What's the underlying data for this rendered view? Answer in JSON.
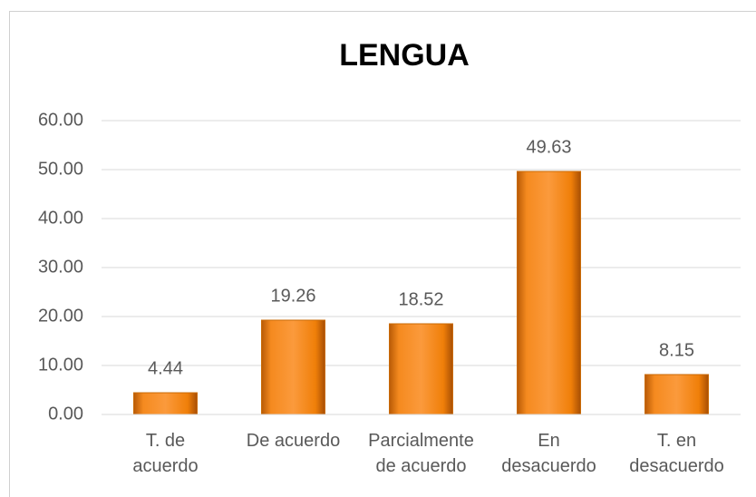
{
  "chart_data": {
    "type": "bar",
    "title": "LENGUA",
    "categories": [
      "T. de\nacuerdo",
      "De acuerdo",
      "Parcialmente\nde acuerdo",
      "En\ndesacuerdo",
      "T. en\ndesacuerdo"
    ],
    "values": [
      4.44,
      19.26,
      18.52,
      49.63,
      8.15
    ],
    "color": "#f07f09",
    "ylim": [
      0,
      60
    ],
    "yticks": [
      {
        "value": 0,
        "label": "0.00"
      },
      {
        "value": 10,
        "label": "10.00"
      },
      {
        "value": 20,
        "label": "20.00"
      },
      {
        "value": 30,
        "label": "30.00"
      },
      {
        "value": 40,
        "label": "40.00"
      },
      {
        "value": 50,
        "label": "50.00"
      },
      {
        "value": 60,
        "label": "60.00"
      }
    ],
    "grid": true
  }
}
